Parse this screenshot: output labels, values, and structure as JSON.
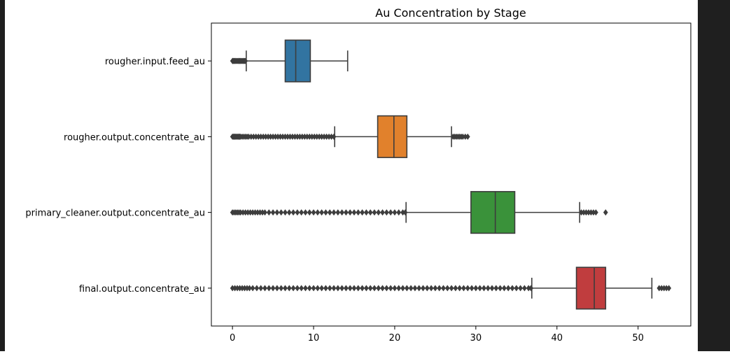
{
  "chart_data": {
    "type": "boxplot",
    "orientation": "horizontal",
    "title": "Au Concentration by Stage",
    "xlabel": "",
    "ylabel": "",
    "xlim": [
      -2.6,
      56.5
    ],
    "xticks": [
      0,
      10,
      20,
      30,
      40,
      50
    ],
    "grid": false,
    "categories": [
      "rougher.input.feed_au",
      "rougher.output.concentrate_au",
      "primary_cleaner.output.concentrate_au",
      "final.output.concentrate_au"
    ],
    "boxes": [
      {
        "name": "rougher.input.feed_au",
        "color": "#3274a1",
        "whisker_low": 1.7,
        "q1": 6.5,
        "median": 7.8,
        "q3": 9.6,
        "whisker_high": 14.2,
        "outliers_low": [
          0.0,
          0.05,
          0.1,
          0.2,
          0.3,
          0.4,
          0.5,
          0.6,
          0.7,
          0.8,
          0.9,
          1.0,
          1.1,
          1.2,
          1.3,
          1.4,
          1.5,
          1.6
        ],
        "outliers_high": []
      },
      {
        "name": "rougher.output.concentrate_au",
        "color": "#e1812c",
        "whisker_low": 12.6,
        "q1": 17.9,
        "median": 19.9,
        "q3": 21.5,
        "whisker_high": 27.0,
        "outliers_low": [
          0.0,
          0.1,
          0.2,
          0.3,
          0.4,
          0.5,
          0.6,
          0.7,
          0.8,
          0.9,
          1.0,
          1.2,
          1.4,
          1.6,
          1.8,
          2.0,
          2.3,
          2.6,
          2.9,
          3.2,
          3.5,
          3.8,
          4.1,
          4.4,
          4.7,
          5.0,
          5.3,
          5.6,
          5.9,
          6.2,
          6.5,
          6.8,
          7.1,
          7.4,
          7.7,
          8.0,
          8.3,
          8.6,
          8.9,
          9.2,
          9.5,
          9.8,
          10.1,
          10.4,
          10.7,
          11.0,
          11.3,
          11.6,
          11.9,
          12.2,
          12.5
        ],
        "outliers_high": [
          27.2,
          27.4,
          27.6,
          27.8,
          28.0,
          28.2,
          28.4,
          28.7,
          29.0
        ]
      },
      {
        "name": "primary_cleaner.output.concentrate_au",
        "color": "#3a923a",
        "whisker_low": 21.4,
        "q1": 29.4,
        "median": 32.4,
        "q3": 34.8,
        "whisker_high": 42.8,
        "outliers_low": [
          0.0,
          0.2,
          0.4,
          0.6,
          0.8,
          1.0,
          1.3,
          1.6,
          1.9,
          2.2,
          2.5,
          2.8,
          3.1,
          3.4,
          3.7,
          4.0,
          4.5,
          5.0,
          5.5,
          6.0,
          6.5,
          7.0,
          7.5,
          8.0,
          8.5,
          9.0,
          9.5,
          10.0,
          10.5,
          11.0,
          11.5,
          12.0,
          12.5,
          13.0,
          13.5,
          14.0,
          14.5,
          15.0,
          15.5,
          16.0,
          16.5,
          17.0,
          17.5,
          18.0,
          18.5,
          19.0,
          19.5,
          20.0,
          20.5,
          21.0,
          21.3
        ],
        "outliers_high": [
          43.0,
          43.3,
          43.6,
          43.9,
          44.2,
          44.5,
          44.8,
          46.0
        ]
      },
      {
        "name": "final.output.concentrate_au",
        "color": "#c03d3e",
        "whisker_low": 36.9,
        "q1": 42.4,
        "median": 44.6,
        "q3": 46.0,
        "whisker_high": 51.7,
        "outliers_low": [
          0.0,
          0.3,
          0.6,
          0.9,
          1.2,
          1.5,
          1.8,
          2.1,
          2.5,
          3.0,
          3.5,
          4.0,
          4.5,
          5.0,
          5.5,
          6.0,
          6.5,
          7.0,
          7.5,
          8.0,
          8.5,
          9.0,
          9.5,
          10.0,
          10.5,
          11.0,
          11.5,
          12.0,
          12.5,
          13.0,
          13.5,
          14.0,
          14.5,
          15.0,
          15.5,
          16.0,
          16.5,
          17.0,
          17.5,
          18.0,
          18.5,
          19.0,
          19.5,
          20.0,
          20.5,
          21.0,
          21.5,
          22.0,
          22.5,
          23.0,
          23.5,
          24.0,
          24.5,
          25.0,
          25.5,
          26.0,
          26.5,
          27.0,
          27.5,
          28.0,
          28.5,
          29.0,
          29.5,
          30.0,
          30.5,
          31.0,
          31.5,
          32.0,
          32.5,
          33.0,
          33.5,
          34.0,
          34.5,
          35.0,
          35.5,
          36.0,
          36.5,
          36.8
        ],
        "outliers_high": [
          52.6,
          52.9,
          53.2,
          53.5,
          53.8
        ]
      }
    ]
  }
}
